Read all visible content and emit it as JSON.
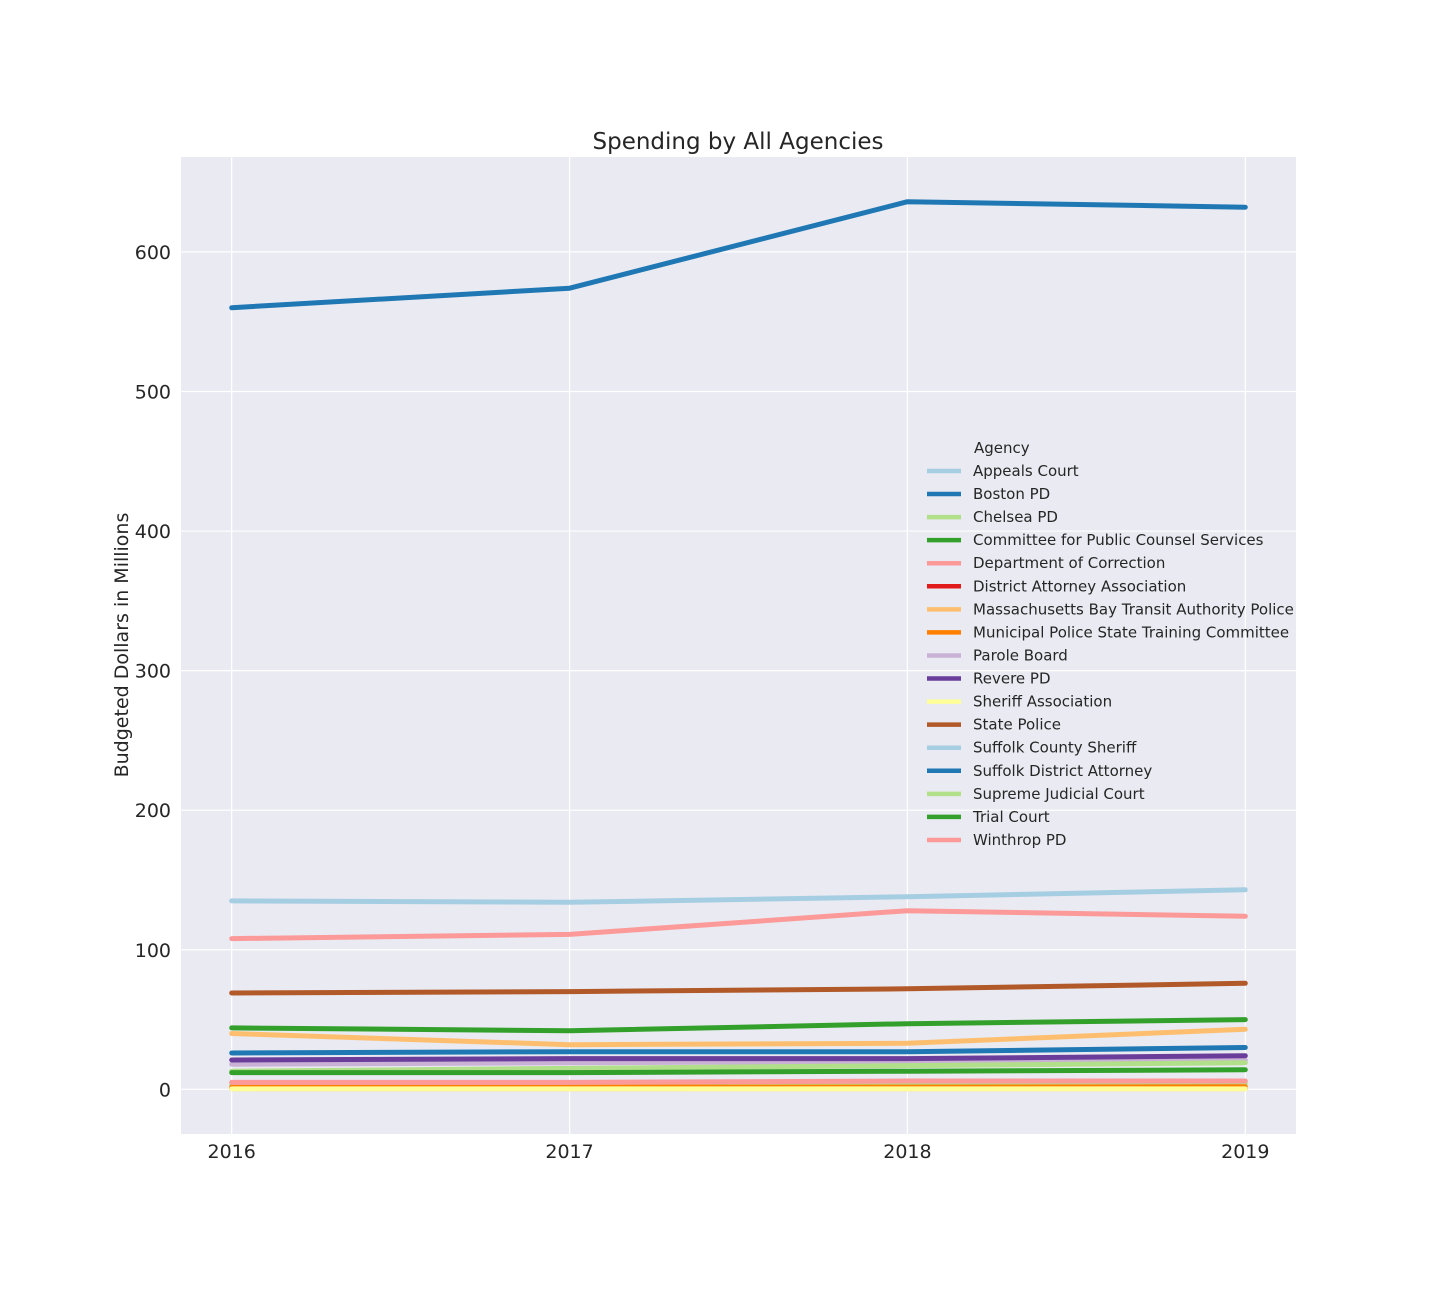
{
  "chart_data": {
    "type": "line",
    "title": "Spending by All Agencies",
    "xlabel": "",
    "ylabel": "Budgeted Dollars in Millions",
    "x": [
      2016,
      2017,
      2018,
      2019
    ],
    "x_tick_labels": [
      "2016",
      "2017",
      "2018",
      "2019"
    ],
    "xlim": [
      2015.85,
      2019.15
    ],
    "ylim": [
      -32,
      668
    ],
    "y_ticks": [
      0,
      100,
      200,
      300,
      400,
      500,
      600
    ],
    "grid": true,
    "legend": {
      "title": "Agency",
      "placement": "center-right"
    },
    "series": [
      {
        "name": "Appeals Court",
        "color": "#a6cee3",
        "values": [
          0.5,
          0.5,
          0.6,
          0.6
        ]
      },
      {
        "name": "Boston PD",
        "color": "#1f78b4",
        "values": [
          560,
          574,
          636,
          632
        ]
      },
      {
        "name": "Chelsea PD",
        "color": "#b2df8a",
        "values": [
          3,
          3,
          3,
          4
        ]
      },
      {
        "name": "Committee for Public Counsel Services",
        "color": "#33a02c",
        "values": [
          44,
          42,
          47,
          50
        ]
      },
      {
        "name": "Department of Correction",
        "color": "#fb9a99",
        "values": [
          108,
          111,
          128,
          124
        ]
      },
      {
        "name": "District Attorney Association",
        "color": "#e31a1c",
        "values": [
          0.5,
          0.5,
          0.5,
          0.5
        ]
      },
      {
        "name": "Massachusetts Bay Transit Authority Police",
        "color": "#fdbf6f",
        "values": [
          40,
          32,
          33,
          43
        ]
      },
      {
        "name": "Municipal Police State Training Committee",
        "color": "#ff7f00",
        "values": [
          1.5,
          1.5,
          1.6,
          1.8
        ]
      },
      {
        "name": "Parole Board",
        "color": "#cab2d6",
        "values": [
          18,
          19,
          20,
          21
        ]
      },
      {
        "name": "Revere PD",
        "color": "#6a3d9a",
        "values": [
          21,
          22,
          22,
          24
        ]
      },
      {
        "name": "Sheriff Association",
        "color": "#ffff99",
        "values": [
          0.3,
          0.3,
          0.3,
          0.3
        ]
      },
      {
        "name": "State Police",
        "color": "#b15928",
        "values": [
          69,
          70,
          72,
          76
        ]
      },
      {
        "name": "Suffolk County Sheriff",
        "color": "#a6cee3",
        "values": [
          135,
          134,
          138,
          143
        ]
      },
      {
        "name": "Suffolk District Attorney",
        "color": "#1f78b4",
        "values": [
          26,
          27,
          27,
          30
        ]
      },
      {
        "name": "Supreme Judicial Court",
        "color": "#b2df8a",
        "values": [
          13,
          15,
          17,
          19
        ]
      },
      {
        "name": "Trial Court",
        "color": "#33a02c",
        "values": [
          12,
          12,
          13,
          14
        ]
      },
      {
        "name": "Winthrop PD",
        "color": "#fb9a99",
        "values": [
          5,
          5,
          6,
          6
        ]
      }
    ]
  }
}
